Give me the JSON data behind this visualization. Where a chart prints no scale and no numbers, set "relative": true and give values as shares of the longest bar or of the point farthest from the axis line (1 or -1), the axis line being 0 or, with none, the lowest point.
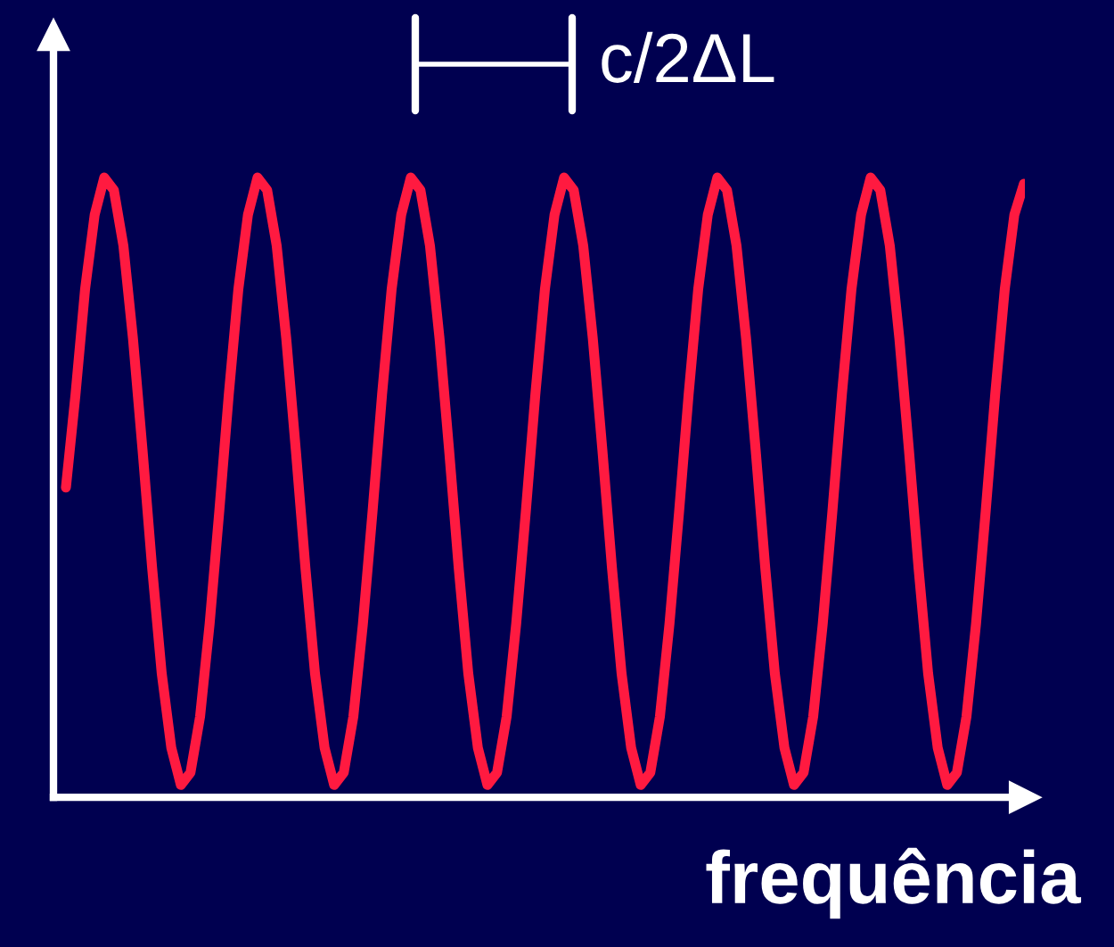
{
  "chart_data": {
    "type": "line",
    "relative": true,
    "xlabel": "frequência",
    "annotations": [
      "c/2ΔL"
    ],
    "color": "#ff1a40",
    "categories": [
      null,
      null,
      null,
      null,
      null,
      null,
      null,
      null,
      null,
      null,
      null,
      null,
      null,
      null,
      null,
      null,
      null,
      null,
      null,
      null,
      null,
      null,
      null,
      null,
      null,
      null,
      null,
      null,
      null,
      null,
      null,
      null,
      null,
      null,
      null,
      null,
      null,
      null,
      null,
      null,
      null,
      null,
      null,
      null,
      null,
      null,
      null,
      null,
      null,
      null,
      null,
      null,
      null,
      null,
      null,
      null,
      null,
      null,
      null,
      null,
      null,
      null,
      null,
      null,
      null,
      null,
      null,
      null,
      null,
      null,
      null,
      null,
      null,
      null,
      null,
      null,
      null,
      null,
      null,
      null,
      null,
      null,
      null,
      null,
      null,
      null,
      null,
      null,
      null,
      null,
      null,
      null,
      null,
      null,
      null,
      null,
      null,
      null,
      null,
      null,
      null
    ],
    "values": [
      0.5,
      0.65,
      0.82,
      0.94,
      1.0,
      0.98,
      0.89,
      0.74,
      0.56,
      0.37,
      0.2,
      0.08,
      0.02,
      0.04,
      0.13,
      0.28,
      0.46,
      0.65,
      0.82,
      0.94,
      1.0,
      0.98,
      0.89,
      0.74,
      0.56,
      0.37,
      0.2,
      0.08,
      0.02,
      0.04,
      0.13,
      0.28,
      0.46,
      0.65,
      0.82,
      0.94,
      1.0,
      0.98,
      0.89,
      0.74,
      0.56,
      0.37,
      0.2,
      0.08,
      0.02,
      0.04,
      0.13,
      0.28,
      0.46,
      0.65,
      0.82,
      0.94,
      1.0,
      0.98,
      0.89,
      0.74,
      0.56,
      0.37,
      0.2,
      0.08,
      0.02,
      0.04,
      0.13,
      0.28,
      0.46,
      0.65,
      0.82,
      0.94,
      1.0,
      0.98,
      0.89,
      0.74,
      0.56,
      0.37,
      0.2,
      0.08,
      0.02,
      0.04,
      0.13,
      0.28,
      0.46,
      0.65,
      0.82,
      0.94,
      1.0,
      0.98,
      0.89,
      0.74,
      0.56,
      0.37,
      0.2,
      0.08,
      0.02,
      0.04,
      0.13,
      0.28,
      0.46,
      0.65,
      0.82,
      0.94,
      0.99
    ]
  }
}
